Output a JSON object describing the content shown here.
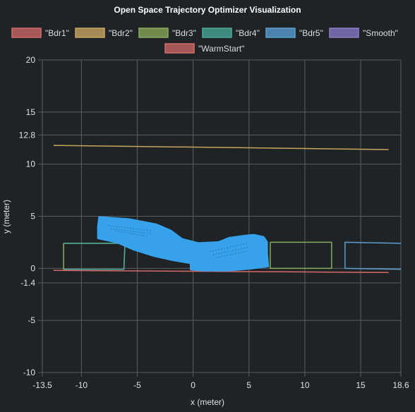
{
  "chart_data": {
    "type": "line",
    "title": "Open Space Trajectory Optimizer Visualization",
    "xlabel": "x (meter)",
    "ylabel": "y (meter)",
    "xlim": [
      -13.5,
      18.6
    ],
    "ylim": [
      -10,
      20
    ],
    "x_ticks": [
      -13.5,
      -10,
      -5,
      0,
      5,
      10,
      15,
      18.6
    ],
    "y_ticks": [
      20,
      15,
      12.8,
      10,
      5,
      0,
      -1.4,
      -5,
      -10
    ],
    "grid": true,
    "legend_position": "top",
    "series": [
      {
        "name": "\"Bdr1\"",
        "color": "#d46a6a",
        "fill": "#a65858",
        "polylines": [
          [
            [
              -12.5,
              -0.2
            ],
            [
              17.5,
              -0.4
            ]
          ]
        ]
      },
      {
        "name": "\"Bdr2\"",
        "color": "#c8a55e",
        "fill": "#a68a55",
        "polylines": [
          [
            [
              -12.5,
              11.8
            ],
            [
              17.5,
              11.4
            ]
          ]
        ]
      },
      {
        "name": "\"Bdr3\"",
        "color": "#8aab5c",
        "fill": "#6e8a4d",
        "polylines": [
          [
            [
              -11.6,
              2.4
            ],
            [
              -6.1,
              2.4
            ],
            [
              -6.2,
              -0.1
            ],
            [
              -11.6,
              -0.1
            ],
            [
              -11.6,
              2.4
            ]
          ],
          [
            [
              6.9,
              2.5
            ],
            [
              12.4,
              2.5
            ],
            [
              12.4,
              0.0
            ],
            [
              6.9,
              0.0
            ],
            [
              6.9,
              2.5
            ]
          ]
        ]
      },
      {
        "name": "\"Bdr4\"",
        "color": "#4fa89a",
        "fill": "#3d8a7e",
        "polylines": [
          [
            [
              -11.6,
              2.4
            ],
            [
              -6.1,
              2.4
            ],
            [
              -6.2,
              -0.1
            ],
            [
              -11.6,
              -0.1
            ]
          ]
        ]
      },
      {
        "name": "\"Bdr5\"",
        "color": "#5a9fcf",
        "fill": "#4a83ad",
        "polylines": [
          [
            [
              18.6,
              2.4
            ],
            [
              13.6,
              2.5
            ],
            [
              13.6,
              0.0
            ],
            [
              18.6,
              -0.1
            ]
          ]
        ]
      },
      {
        "name": "\"Smooth\"",
        "color": "#8a7fc0",
        "fill": "#6f66a3",
        "polylines": []
      },
      {
        "name": "\"WarmStart\"",
        "color": "#d46a6a",
        "fill": "#a65858",
        "polylines": []
      }
    ],
    "trajectory": {
      "color": "#36a2eb",
      "outline": [
        [
          -8.4,
          4.9
        ],
        [
          -5.7,
          4.7
        ],
        [
          -3.3,
          4.2
        ],
        [
          -2.0,
          3.6
        ],
        [
          -1.0,
          2.8
        ],
        [
          0.5,
          2.4
        ],
        [
          2.3,
          2.5
        ],
        [
          3.2,
          2.9
        ],
        [
          4.5,
          3.1
        ],
        [
          5.4,
          3.2
        ],
        [
          6.3,
          3.0
        ],
        [
          6.6,
          2.5
        ],
        [
          6.6,
          1.5
        ],
        [
          6.7,
          0.2
        ],
        [
          5.2,
          0.0
        ],
        [
          3.2,
          -0.2
        ],
        [
          1.0,
          -0.2
        ],
        [
          -0.2,
          -0.1
        ],
        [
          -0.2,
          0.5
        ],
        [
          -1.8,
          0.8
        ],
        [
          -3.5,
          1.2
        ],
        [
          -5.3,
          1.8
        ],
        [
          -6.8,
          2.5
        ],
        [
          -8.5,
          2.9
        ],
        [
          -8.5,
          4.0
        ]
      ],
      "hatches": [
        [
          [
            -7.7,
            4.1
          ],
          [
            -3.7,
            3.6
          ]
        ],
        [
          [
            -7.4,
            3.8
          ],
          [
            -3.6,
            3.3
          ]
        ],
        [
          [
            -7.0,
            3.6
          ],
          [
            -4.2,
            3.1
          ]
        ],
        [
          [
            1.5,
            1.6
          ],
          [
            4.8,
            2.4
          ]
        ],
        [
          [
            1.8,
            1.3
          ],
          [
            4.9,
            2.0
          ]
        ],
        [
          [
            2.0,
            1.0
          ],
          [
            5.0,
            1.7
          ]
        ]
      ]
    }
  }
}
